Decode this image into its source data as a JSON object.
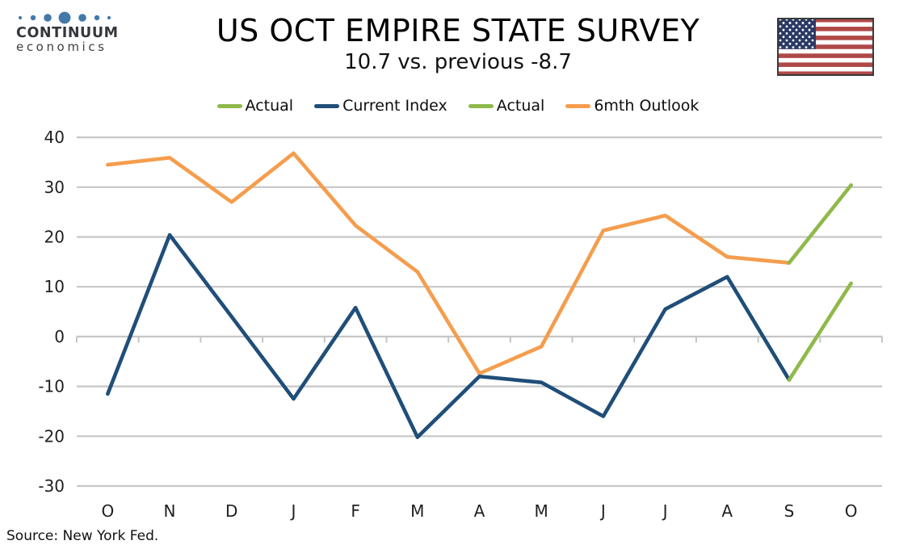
{
  "header": {
    "logo_line1": "CONTINUUM",
    "logo_line2": "economics",
    "title": "US OCT EMPIRE STATE SURVEY",
    "subtitle": "10.7 vs. previous -8.7"
  },
  "footer": {
    "source": "Source: New York Fed."
  },
  "colors": {
    "green": "#8fb94b",
    "blue": "#1f4e79",
    "orange": "#f59d4d",
    "grid": "#c6c6c6",
    "axis_text": "#1f1f1f",
    "logo_dot": "#4379a9",
    "flag_red": "#b04848",
    "flag_canton": "#2b3a64",
    "flag_border": "#3a3a3a"
  },
  "chart_data": {
    "type": "line",
    "title": "US OCT EMPIRE STATE SURVEY",
    "subtitle": "10.7 vs. previous -8.7",
    "categories": [
      "O",
      "N",
      "D",
      "J",
      "F",
      "M",
      "A",
      "M",
      "J",
      "J",
      "A",
      "S",
      "O"
    ],
    "ylim": [
      -30,
      40
    ],
    "ytick_step": 10,
    "grid": true,
    "legend_position": "top",
    "legend": [
      {
        "label": "Actual",
        "color_key": "green"
      },
      {
        "label": "Current Index",
        "color_key": "blue"
      },
      {
        "label": "Actual",
        "color_key": "green"
      },
      {
        "label": "6mth Outlook",
        "color_key": "orange"
      }
    ],
    "series": [
      {
        "name": "6mth Outlook",
        "color_key": "orange",
        "values": [
          34.5,
          35.9,
          27,
          36.8,
          22.3,
          13,
          -7.4,
          -2,
          21.3,
          24.3,
          16,
          14.8,
          null
        ]
      },
      {
        "name": "Current Index",
        "color_key": "blue",
        "values": [
          -11.5,
          20.4,
          4,
          -12.5,
          5.8,
          -20.2,
          -8,
          -9.2,
          -16,
          5.5,
          12,
          -8.7,
          null
        ]
      },
      {
        "name": "Actual (6mth outlook)",
        "color_key": "green",
        "values": [
          null,
          null,
          null,
          null,
          null,
          null,
          null,
          null,
          null,
          null,
          null,
          14.8,
          30.4
        ]
      },
      {
        "name": "Actual (current index)",
        "color_key": "green",
        "values": [
          null,
          null,
          null,
          null,
          null,
          null,
          null,
          null,
          null,
          null,
          null,
          -8.7,
          10.7
        ]
      }
    ]
  }
}
